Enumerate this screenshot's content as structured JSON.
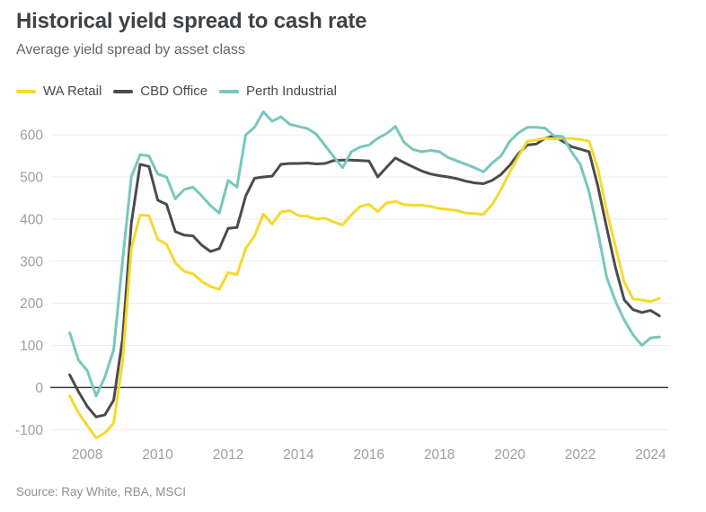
{
  "header": {
    "title": "Historical yield spread to cash rate",
    "subtitle": "Average yield spread by asset class"
  },
  "legend": [
    {
      "label": "WA Retail",
      "color": "#f5d92b"
    },
    {
      "label": "CBD Office",
      "color": "#4b4b4b"
    },
    {
      "label": "Perth Industrial",
      "color": "#76c7bc"
    }
  ],
  "footer": {
    "source": "Source: Ray White, RBA, MSCI"
  },
  "chart_data": {
    "type": "line",
    "title": "Historical yield spread to cash rate",
    "subtitle": "Average yield spread by asset class",
    "legend_position": "top-left",
    "grid": "horizontal-only",
    "zero_line": true,
    "x_ticks": [
      2008,
      2010,
      2012,
      2014,
      2016,
      2018,
      2020,
      2022,
      2024
    ],
    "y_ticks": [
      -100,
      0,
      100,
      200,
      300,
      400,
      500,
      600
    ],
    "x_domain": [
      2006.95,
      2024.5
    ],
    "y_domain": [
      -140,
      660
    ],
    "colors": {
      "gridline": "#ebebeb",
      "zero_line": "#3a3a3a"
    },
    "x": [
      2007.5,
      2007.75,
      2008.0,
      2008.25,
      2008.5,
      2008.75,
      2009.0,
      2009.25,
      2009.5,
      2009.75,
      2010.0,
      2010.25,
      2010.5,
      2010.75,
      2011.0,
      2011.25,
      2011.5,
      2011.75,
      2012.0,
      2012.25,
      2012.5,
      2012.75,
      2013.0,
      2013.25,
      2013.5,
      2013.75,
      2014.0,
      2014.25,
      2014.5,
      2014.75,
      2015.0,
      2015.25,
      2015.5,
      2015.75,
      2016.0,
      2016.25,
      2016.5,
      2016.75,
      2017.0,
      2017.25,
      2017.5,
      2017.75,
      2018.0,
      2018.25,
      2018.5,
      2018.75,
      2019.0,
      2019.25,
      2019.5,
      2019.75,
      2020.0,
      2020.25,
      2020.5,
      2020.75,
      2021.0,
      2021.25,
      2021.5,
      2021.75,
      2022.0,
      2022.25,
      2022.5,
      2022.75,
      2023.0,
      2023.25,
      2023.5,
      2023.75,
      2024.0,
      2024.25
    ],
    "series": [
      {
        "name": "CBD Office",
        "color": "#4b4b4b",
        "values": [
          30,
          -10,
          -45,
          -70,
          -65,
          -30,
          115,
          390,
          530,
          525,
          445,
          435,
          370,
          362,
          360,
          338,
          323,
          330,
          378,
          380,
          455,
          497,
          500,
          502,
          530,
          532,
          532,
          533,
          531,
          532,
          539,
          540,
          540,
          539,
          538,
          500,
          523,
          545,
          534,
          524,
          514,
          507,
          503,
          500,
          496,
          490,
          486,
          484,
          492,
          506,
          528,
          556,
          576,
          578,
          592,
          597,
          585,
          572,
          566,
          560,
          478,
          380,
          285,
          208,
          185,
          178,
          183,
          170
        ]
      },
      {
        "name": "WA Retail",
        "color": "#f5d92b",
        "values": [
          -20,
          -60,
          -90,
          -120,
          -108,
          -85,
          60,
          330,
          410,
          408,
          352,
          340,
          296,
          276,
          270,
          252,
          240,
          233,
          273,
          268,
          330,
          360,
          412,
          388,
          417,
          420,
          408,
          407,
          400,
          402,
          393,
          386,
          410,
          430,
          435,
          418,
          438,
          442,
          434,
          433,
          433,
          430,
          425,
          423,
          420,
          414,
          413,
          411,
          435,
          470,
          512,
          550,
          585,
          588,
          592,
          590,
          592,
          591,
          589,
          585,
          520,
          420,
          335,
          250,
          210,
          208,
          204,
          212
        ]
      },
      {
        "name": "Perth Industrial",
        "color": "#76c7bc",
        "values": [
          130,
          65,
          40,
          -20,
          25,
          90,
          300,
          500,
          553,
          550,
          507,
          500,
          448,
          470,
          476,
          455,
          432,
          414,
          492,
          476,
          600,
          618,
          655,
          632,
          643,
          625,
          620,
          615,
          602,
          575,
          548,
          522,
          560,
          571,
          576,
          592,
          603,
          620,
          582,
          565,
          560,
          563,
          560,
          546,
          538,
          530,
          522,
          512,
          533,
          550,
          585,
          605,
          618,
          618,
          616,
          598,
          596,
          560,
          530,
          465,
          370,
          262,
          205,
          160,
          125,
          100,
          118,
          120
        ]
      }
    ]
  }
}
